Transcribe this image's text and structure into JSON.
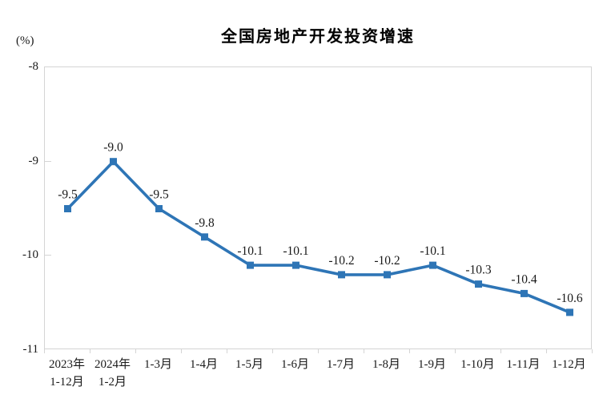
{
  "chart_data": {
    "type": "line",
    "title": "全国房地产开发投资增速",
    "ylabel": "(%)",
    "xlabel": "",
    "ylim": [
      -11,
      -8
    ],
    "yticks": [
      {
        "value": -8,
        "label": "-8"
      },
      {
        "value": -9,
        "label": "-9"
      },
      {
        "value": -10,
        "label": "-10"
      },
      {
        "value": -11,
        "label": "-11"
      }
    ],
    "inner_ytick_marks": [
      -9,
      -10
    ],
    "categories": [
      [
        "2023年",
        "1-12月"
      ],
      [
        "2024年",
        "1-2月"
      ],
      [
        "1-3月"
      ],
      [
        "1-4月"
      ],
      [
        "1-5月"
      ],
      [
        "1-6月"
      ],
      [
        "1-7月"
      ],
      [
        "1-8月"
      ],
      [
        "1-9月"
      ],
      [
        "1-10月"
      ],
      [
        "1-11月"
      ],
      [
        "1-12月"
      ]
    ],
    "series": [
      {
        "name": "全国房地产开发投资增速",
        "values": [
          -9.5,
          -9.0,
          -9.5,
          -9.8,
          -10.1,
          -10.1,
          -10.2,
          -10.2,
          -10.1,
          -10.3,
          -10.4,
          -10.6
        ],
        "labels": [
          "-9.5",
          "-9.0",
          "-9.5",
          "-9.8",
          "-10.1",
          "-10.1",
          "-10.2",
          "-10.2",
          "-10.1",
          "-10.3",
          "-10.4",
          "-10.6"
        ],
        "color": "#2E75B6"
      }
    ],
    "grid": false,
    "legend": false,
    "axis_color": "#d4d4d4",
    "label_color": "#1a1a1a",
    "background": "#ffffff"
  }
}
